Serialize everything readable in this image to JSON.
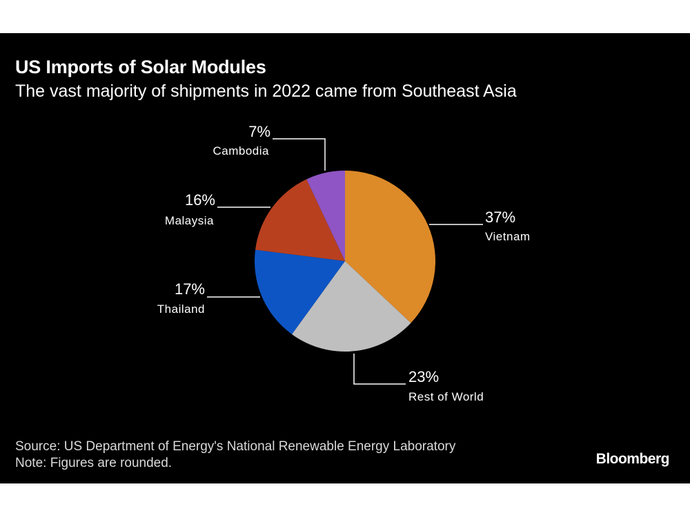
{
  "title": "US Imports of Solar Modules",
  "subtitle": "The vast majority of shipments in 2022 came from Southeast Asia",
  "source": "Source: US Department of Energy's National Renewable Energy Laboratory",
  "note": "Note: Figures are rounded.",
  "logo": "Bloomberg",
  "colors": {
    "background": "#000000",
    "text": "#ffffff"
  },
  "chart_data": {
    "type": "pie",
    "title": "US Imports of Solar Modules",
    "subtitle": "The vast majority of shipments in 2022 came from Southeast Asia",
    "slices": [
      {
        "label": "Vietnam",
        "value": 37,
        "value_label": "37%",
        "color": "#dd8a29"
      },
      {
        "label": "Rest of World",
        "value": 23,
        "value_label": "23%",
        "color": "#bfbfbf"
      },
      {
        "label": "Thailand",
        "value": 17,
        "value_label": "17%",
        "color": "#0d55c5"
      },
      {
        "label": "Malaysia",
        "value": 16,
        "value_label": "16%",
        "color": "#b8401f"
      },
      {
        "label": "Cambodia",
        "value": 7,
        "value_label": "7%",
        "color": "#8f55c4"
      }
    ],
    "start": "12 o'clock",
    "direction": "clockwise"
  }
}
